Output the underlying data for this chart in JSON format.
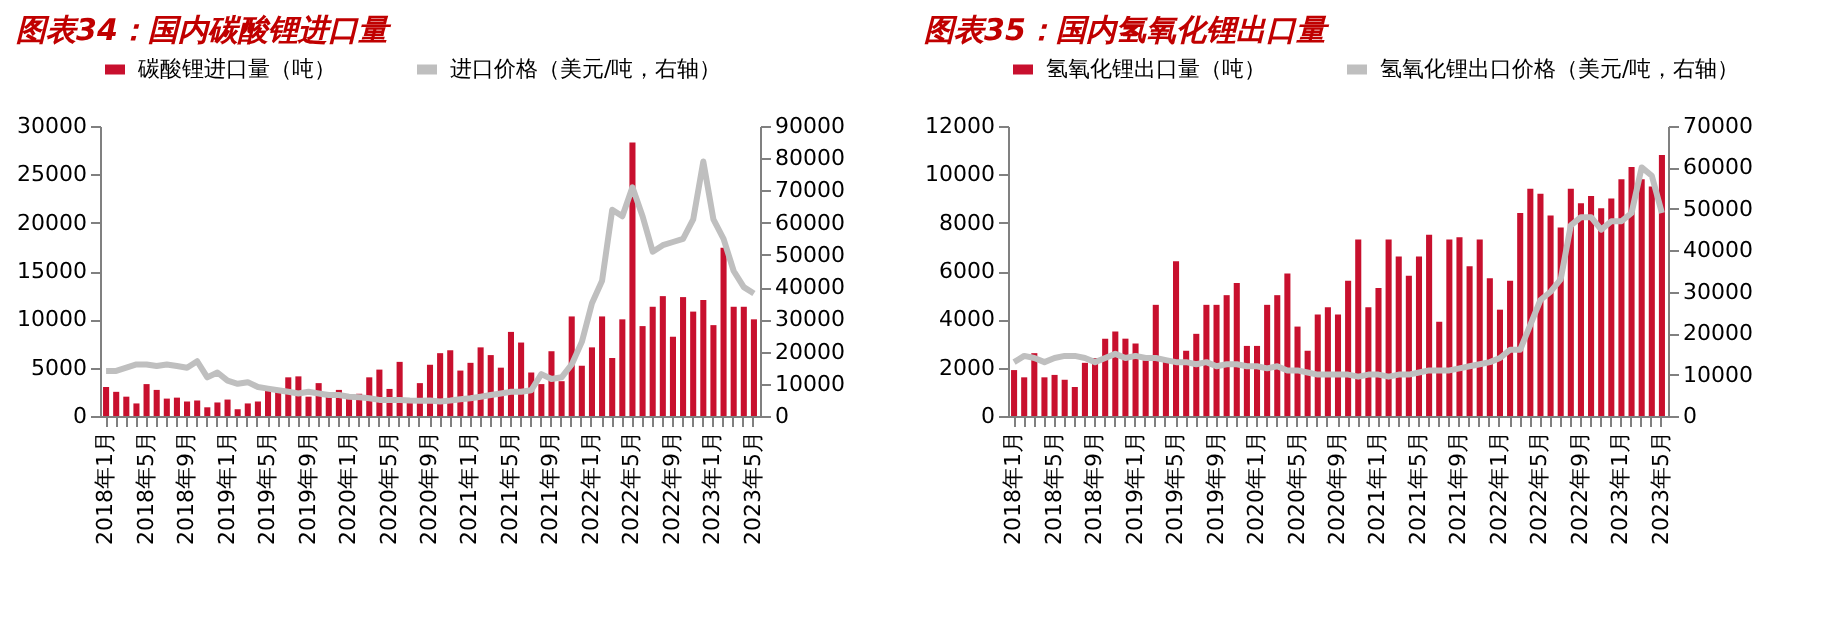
{
  "chart_data": [
    {
      "type": "bar",
      "title": "图表34：国内碳酸锂进口量",
      "legend": "top",
      "categories": [
        "2018年1月",
        null,
        null,
        null,
        "2018年5月",
        null,
        null,
        null,
        "2018年9月",
        null,
        null,
        null,
        "2019年1月",
        null,
        null,
        null,
        "2019年5月",
        null,
        null,
        null,
        "2019年9月",
        null,
        null,
        null,
        "2020年1月",
        null,
        null,
        null,
        "2020年5月",
        null,
        null,
        null,
        "2020年9月",
        null,
        null,
        null,
        "2021年1月",
        null,
        null,
        null,
        "2021年5月",
        null,
        null,
        null,
        "2021年9月",
        null,
        null,
        null,
        "2022年1月",
        null,
        null,
        null,
        "2022年5月",
        null,
        null,
        null,
        "2022年9月",
        null,
        null,
        null,
        "2023年1月",
        null,
        null,
        null,
        "2023年5月"
      ],
      "ylim": [
        0,
        30000
      ],
      "yticks": [
        0,
        5000,
        10000,
        15000,
        20000,
        25000,
        30000
      ],
      "y2lim": [
        0,
        90000
      ],
      "y2ticks": [
        0,
        10000,
        20000,
        30000,
        40000,
        50000,
        60000,
        70000,
        80000,
        90000
      ],
      "series": [
        {
          "name": "碳酸锂进口量（吨）",
          "color": "#c8102e",
          "values": [
            3000,
            2500,
            2000,
            1300,
            3300,
            2700,
            1800,
            1900,
            1500,
            1600,
            900,
            1400,
            1700,
            700,
            1300,
            1500,
            2800,
            2700,
            4000,
            4100,
            2000,
            3400,
            2100,
            2700,
            2200,
            2300,
            4000,
            4800,
            2800,
            5600,
            1500,
            3400,
            5300,
            6500,
            6800,
            4700,
            5500,
            7100,
            6300,
            5000,
            8700,
            7600,
            4500,
            3300,
            6700,
            3600,
            10300,
            5200,
            7100,
            10300,
            6000,
            10000,
            28300,
            9300,
            11300,
            12400,
            8200,
            12300,
            10800,
            12000,
            9400,
            17400,
            11300,
            11300,
            10000
          ]
        },
        {
          "name": "进口价格（美元/吨，右轴）",
          "type": "line",
          "axis": "y2",
          "color": "#bfbfbf",
          "values": [
            14000,
            14000,
            15000,
            16000,
            16000,
            15500,
            16000,
            15500,
            15000,
            17000,
            12000,
            13500,
            11000,
            10000,
            10500,
            9000,
            8500,
            8000,
            7500,
            7000,
            7500,
            7000,
            6500,
            6500,
            6000,
            5800,
            5500,
            5000,
            5000,
            5000,
            4800,
            4700,
            4800,
            4500,
            4800,
            5200,
            5500,
            6000,
            6500,
            7000,
            7500,
            7500,
            8000,
            13000,
            11500,
            12000,
            16000,
            23000,
            35000,
            42000,
            64000,
            62000,
            71000,
            62000,
            51000,
            53000,
            54000,
            55000,
            61000,
            79000,
            61000,
            55000,
            45000,
            40000,
            38000
          ]
        }
      ]
    },
    {
      "type": "bar",
      "title": "图表35：国内氢氧化锂出口量",
      "legend": "top",
      "categories": [
        "2018年1月",
        null,
        null,
        null,
        "2018年5月",
        null,
        null,
        null,
        "2018年9月",
        null,
        null,
        null,
        "2019年1月",
        null,
        null,
        null,
        "2019年5月",
        null,
        null,
        null,
        "2019年9月",
        null,
        null,
        null,
        "2020年1月",
        null,
        null,
        null,
        "2020年5月",
        null,
        null,
        null,
        "2020年9月",
        null,
        null,
        null,
        "2021年1月",
        null,
        null,
        null,
        "2021年5月",
        null,
        null,
        null,
        "2021年9月",
        null,
        null,
        null,
        "2022年1月",
        null,
        null,
        null,
        "2022年5月",
        null,
        null,
        null,
        "2022年9月",
        null,
        null,
        null,
        "2023年1月",
        null,
        null,
        null,
        "2023年5月"
      ],
      "ylim": [
        0,
        12000
      ],
      "yticks": [
        0,
        2000,
        4000,
        6000,
        8000,
        10000,
        12000
      ],
      "y2lim": [
        0,
        70000
      ],
      "y2ticks": [
        0,
        10000,
        20000,
        30000,
        40000,
        50000,
        60000,
        70000
      ],
      "series": [
        {
          "name": "氢氧化锂出口量（吨）",
          "color": "#c8102e",
          "values": [
            1900,
            1600,
            2600,
            1600,
            1700,
            1500,
            1200,
            2200,
            2400,
            3200,
            3500,
            3200,
            3000,
            2300,
            4600,
            2400,
            6400,
            2700,
            3400,
            4600,
            4600,
            5000,
            5500,
            2900,
            2900,
            4600,
            5000,
            5900,
            3700,
            2700,
            4200,
            4500,
            4200,
            5600,
            7300,
            4500,
            5300,
            7300,
            6600,
            5800,
            6600,
            7500,
            3900,
            7300,
            7400,
            6200,
            7300,
            5700,
            4400,
            5600,
            8400,
            9400,
            9200,
            8300,
            7800,
            9400,
            8800,
            9100,
            8600,
            9000,
            9800,
            10300,
            9800,
            9500,
            10800
          ]
        },
        {
          "name": "氢氧化锂出口价格（美元/吨，右轴）",
          "type": "line",
          "axis": "y2",
          "color": "#bfbfbf",
          "values": [
            13000,
            14500,
            14000,
            13000,
            14000,
            14500,
            14500,
            14000,
            13000,
            14000,
            15000,
            14000,
            14500,
            14000,
            14000,
            13500,
            13000,
            13000,
            12500,
            13000,
            12000,
            12500,
            12500,
            12000,
            12000,
            11500,
            12000,
            11000,
            11000,
            10500,
            10000,
            10000,
            10000,
            10000,
            9500,
            10000,
            10000,
            9500,
            10000,
            10000,
            10500,
            11000,
            11000,
            11000,
            11500,
            12000,
            12500,
            13000,
            14000,
            16000,
            16000,
            22000,
            28000,
            30000,
            33000,
            46000,
            48000,
            48000,
            45000,
            47000,
            47000,
            49000,
            60000,
            58000,
            49000
          ]
        }
      ]
    }
  ]
}
